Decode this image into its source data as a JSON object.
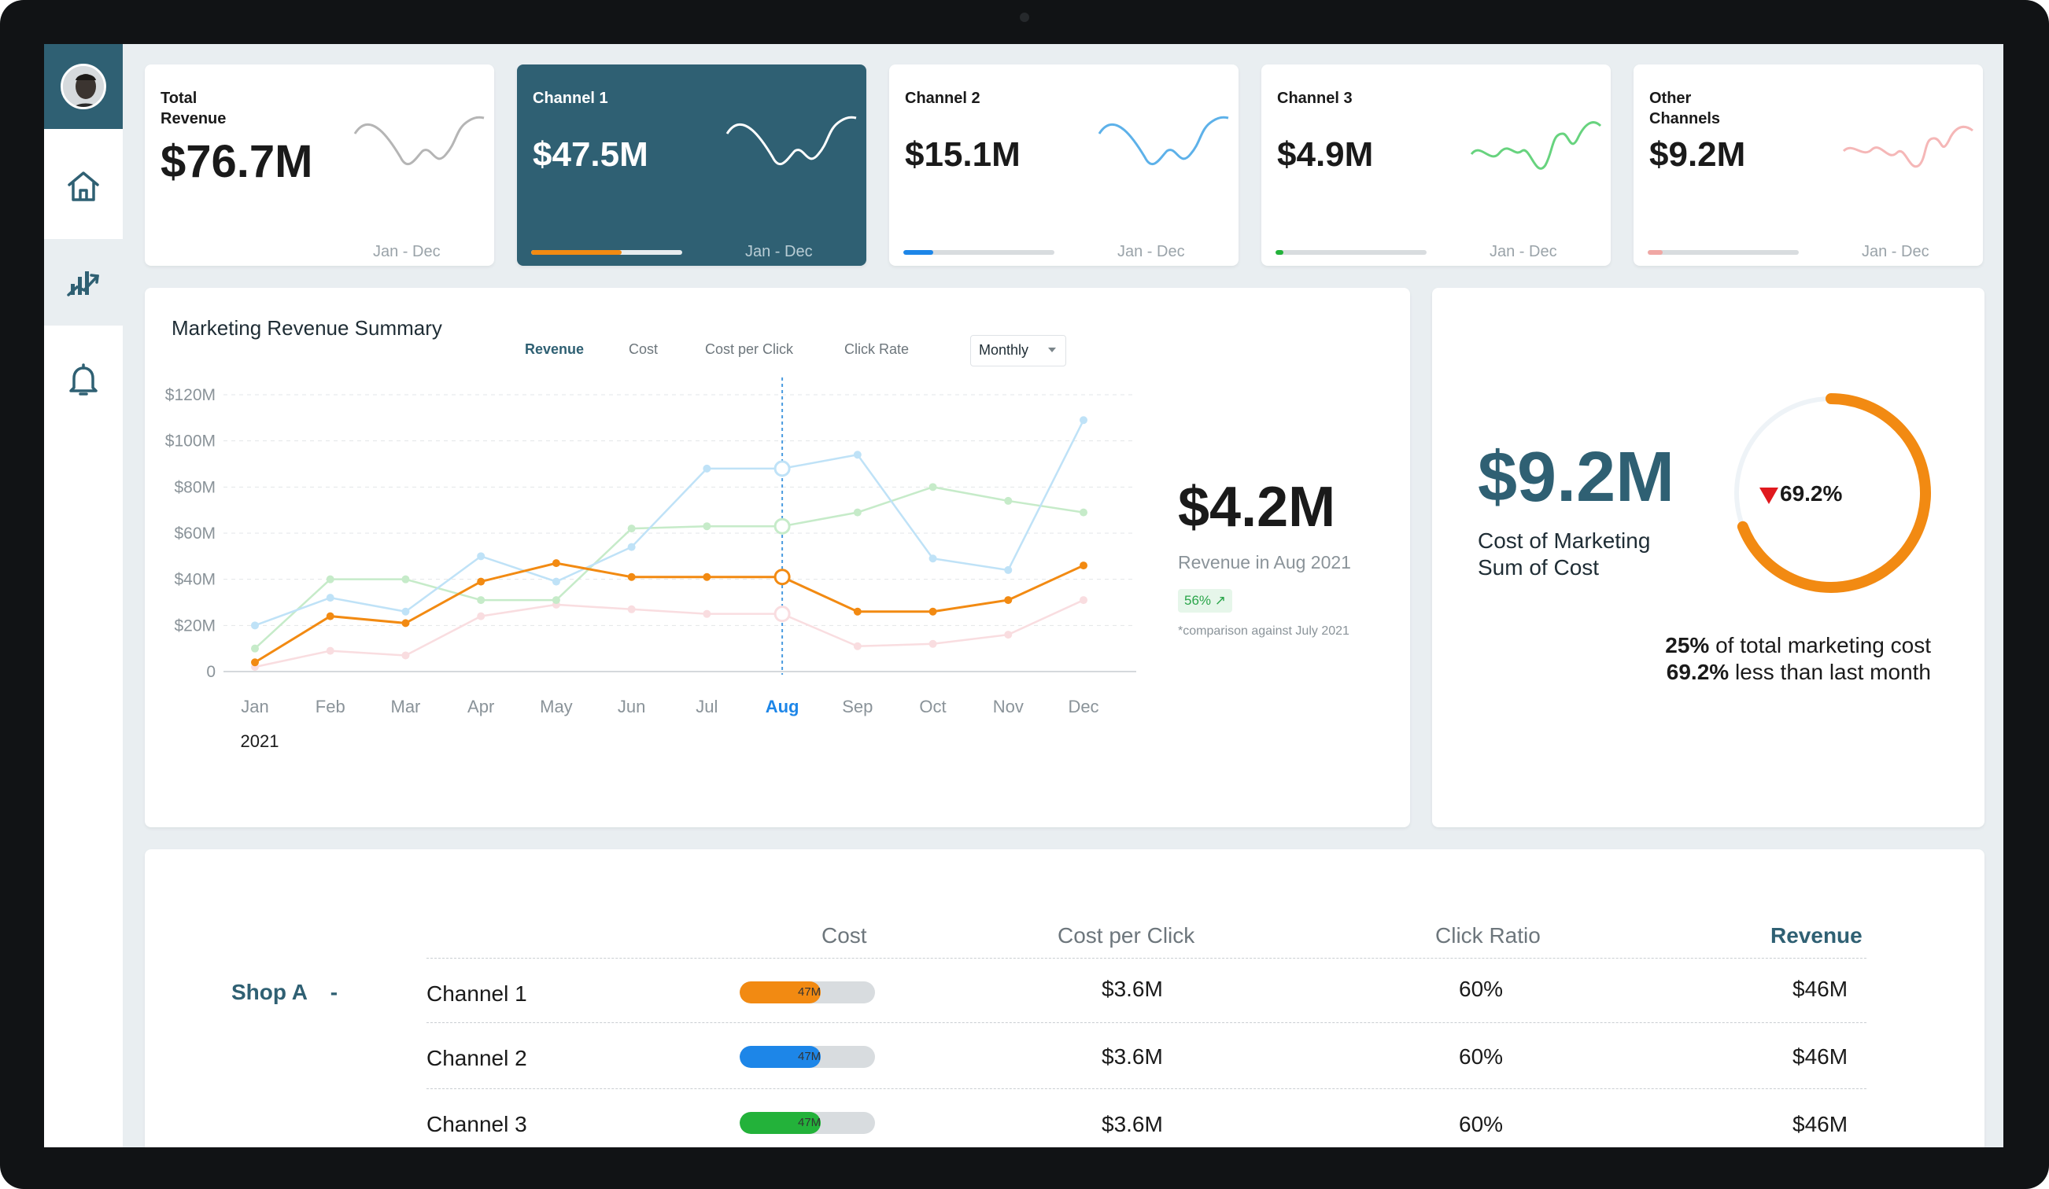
{
  "kpis": [
    {
      "title": "Total\nRevenue",
      "value": "$76.7M",
      "period": "Jan - Dec",
      "spark_color": "#b5b5b5",
      "progress": null
    },
    {
      "title": "Channel 1",
      "value": "$47.5M",
      "period": "Jan - Dec",
      "spark_color": "#ffffff",
      "progress": 0.6,
      "progress_color": "#f28a12"
    },
    {
      "title": "Channel 2",
      "value": "$15.1M",
      "period": "Jan - Dec",
      "spark_color": "#5db1e9",
      "progress": 0.2,
      "progress_color": "#1d86e8"
    },
    {
      "title": "Channel 3",
      "value": "$4.9M",
      "period": "Jan - Dec",
      "spark_color": "#67d37e",
      "progress": 0.05,
      "progress_color": "#23b23a"
    },
    {
      "title": "Other\nChannels",
      "value": "$9.2M",
      "period": "Jan - Dec",
      "spark_color": "#f5b7b7",
      "progress": 0.1,
      "progress_color": "#f0a7a4"
    }
  ],
  "chart_panel": {
    "title": "Marketing Revenue Summary",
    "tabs": [
      "Revenue",
      "Cost",
      "Cost per Click",
      "Click Rate"
    ],
    "active_tab": "Revenue",
    "select": "Monthly",
    "stat_value": "$4.2M",
    "stat_label": "Revenue in Aug 2021",
    "stat_badge": "56% ↗",
    "stat_note": "*comparison against July 2021"
  },
  "chart_data": {
    "type": "line",
    "x": [
      "Jan",
      "Feb",
      "Mar",
      "Apr",
      "May",
      "Jun",
      "Jul",
      "Aug",
      "Sep",
      "Oct",
      "Nov",
      "Dec"
    ],
    "year_label": "2021",
    "highlight_month": "Aug",
    "y_ticks": [
      "0",
      "$20M",
      "$40M",
      "$60M",
      "$80M",
      "$100M",
      "$120M"
    ],
    "ylim": [
      0,
      120
    ],
    "series": [
      {
        "color": "#f28a12",
        "values": [
          4,
          24,
          21,
          39,
          47,
          41,
          41,
          41,
          26,
          26,
          31,
          46
        ]
      },
      {
        "color": "#bfe2f7",
        "values": [
          20,
          32,
          26,
          50,
          39,
          54,
          88,
          88,
          94,
          49,
          44,
          109
        ]
      },
      {
        "color": "#c6ebc9",
        "values": [
          10,
          40,
          40,
          31,
          31,
          62,
          63,
          63,
          69,
          80,
          74,
          69
        ]
      },
      {
        "color": "#f9dde0",
        "values": [
          2,
          9,
          7,
          24,
          29,
          27,
          25,
          25,
          11,
          12,
          16,
          31
        ]
      }
    ]
  },
  "cost_panel": {
    "value": "$9.2M",
    "label_line1": "Cost of Marketing",
    "label_line2": "Sum of Cost",
    "donut_pct": "69.2%",
    "donut_fraction": 0.692,
    "donut_color": "#f28a12",
    "summary_bold1": "25%",
    "summary_rest1": " of total marketing cost",
    "summary_bold2": "69.2%",
    "summary_rest2": " less than last month"
  },
  "table": {
    "headers": [
      "Cost",
      "Cost per Click",
      "Click Ratio",
      "Revenue"
    ],
    "group": "Shop A",
    "collapse_symbol": "-",
    "rows": [
      {
        "channel": "Channel 1",
        "bar_label": "47M",
        "bar_fraction": 0.6,
        "bar_color": "#f28a12",
        "cpc": "$3.6M",
        "ratio": "60%",
        "revenue": "$46M"
      },
      {
        "channel": "Channel 2",
        "bar_label": "47M",
        "bar_fraction": 0.6,
        "bar_color": "#1d86e8",
        "cpc": "$3.6M",
        "ratio": "60%",
        "revenue": "$46M"
      },
      {
        "channel": "Channel 3",
        "bar_label": "47M",
        "bar_fraction": 0.6,
        "bar_color": "#23b23a",
        "cpc": "$3.6M",
        "ratio": "60%",
        "revenue": "$46M"
      }
    ]
  }
}
